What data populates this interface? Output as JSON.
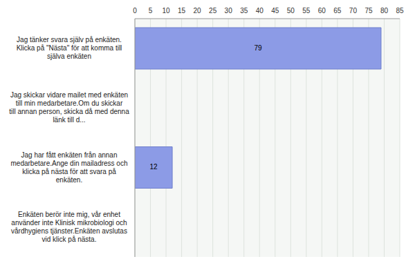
{
  "chart_data": {
    "type": "bar",
    "orientation": "horizontal",
    "categories": [
      "Jag tänker svara själv på enkäten. Klicka på \"Nästa\" för att komma till själva enkäten",
      "Jag skickar vidare mailet med enkäten till min medarbetare.Om du skickar till annan person, skicka då med denna länk till d...",
      "Jag har fått enkäten från annan medarbetare.Ange din mailadress och klicka på nästa för att svara på enkäten.",
      "Enkäten berör inte mig, vår enhet använder inte Klinisk mikrobiologi och vårdhygiens tjänster.Enkäten avslutas vid klick på nästa."
    ],
    "values": [
      79,
      0,
      12,
      0
    ],
    "color": "#8c9be6",
    "xlim": [
      0,
      85
    ],
    "xticks": [
      0,
      5,
      10,
      15,
      20,
      25,
      30,
      35,
      40,
      45,
      50,
      55,
      60,
      65,
      70,
      75,
      80,
      85
    ],
    "grid": true,
    "data_labels": true
  }
}
